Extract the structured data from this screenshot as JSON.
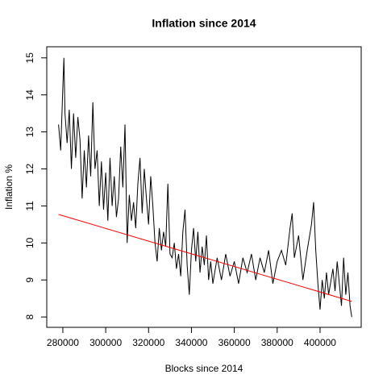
{
  "chart_data": {
    "type": "line",
    "title": "Inflation since 2014",
    "x_label": "Blocks since 2014",
    "y_label": "Inflation %",
    "xlim": [
      272500,
      419200
    ],
    "ylim": [
      7.72,
      15.3
    ],
    "xticks": [
      280000,
      300000,
      320000,
      340000,
      360000,
      380000,
      400000
    ],
    "yticks": [
      8,
      9,
      10,
      11,
      12,
      13,
      14,
      15
    ],
    "series": [
      {
        "color": "#000000",
        "x": [
          278000,
          279000,
          280000,
          280500,
          281000,
          282000,
          283000,
          284000,
          285000,
          286000,
          287000,
          288000,
          289000,
          290000,
          291000,
          292000,
          293000,
          294000,
          295000,
          296000,
          297000,
          298000,
          299000,
          300000,
          301000,
          302000,
          303000,
          304000,
          305000,
          306000,
          307000,
          308000,
          309000,
          310000,
          311000,
          312000,
          313000,
          314000,
          315000,
          316000,
          317000,
          318000,
          319000,
          320000,
          321000,
          322000,
          323000,
          324000,
          325000,
          326000,
          327000,
          328000,
          329000,
          330000,
          331000,
          332000,
          333000,
          334000,
          335000,
          336000,
          337000,
          338000,
          339000,
          340000,
          341000,
          342000,
          343000,
          344000,
          345000,
          346000,
          347000,
          348000,
          349000,
          350000,
          352000,
          354000,
          356000,
          358000,
          360000,
          362000,
          364000,
          366000,
          368000,
          370000,
          372000,
          374000,
          376000,
          378000,
          380000,
          382000,
          384000,
          386000,
          387000,
          388000,
          390000,
          392000,
          394000,
          396000,
          397000,
          398000,
          399000,
          400000,
          401000,
          402000,
          403000,
          404000,
          406000,
          407000,
          408000,
          409000,
          410000,
          411000,
          412000,
          413000,
          414000,
          414800
        ],
        "values": [
          13.2,
          12.5,
          14.2,
          15.0,
          13.5,
          12.7,
          13.6,
          12.0,
          13.5,
          12.3,
          13.4,
          12.8,
          11.2,
          12.5,
          11.5,
          12.9,
          11.8,
          13.8,
          12.0,
          12.5,
          11.0,
          12.2,
          10.9,
          11.9,
          10.6,
          12.3,
          11.0,
          11.8,
          10.7,
          11.2,
          12.6,
          11.5,
          13.2,
          10.0,
          11.3,
          10.6,
          11.1,
          10.4,
          11.6,
          12.3,
          10.8,
          12.0,
          11.2,
          10.5,
          11.8,
          11.0,
          10.0,
          9.5,
          10.4,
          9.8,
          10.3,
          9.9,
          11.6,
          9.7,
          9.6,
          10.0,
          9.3,
          9.7,
          9.1,
          10.3,
          10.9,
          9.4,
          8.6,
          9.8,
          10.4,
          9.5,
          10.3,
          9.2,
          9.9,
          9.4,
          10.2,
          9.0,
          9.5,
          8.9,
          9.6,
          9.0,
          9.7,
          9.1,
          9.5,
          8.9,
          9.6,
          9.2,
          9.7,
          9.0,
          9.6,
          9.2,
          9.8,
          8.9,
          9.5,
          9.8,
          9.4,
          10.4,
          10.8,
          9.6,
          10.2,
          9.0,
          9.8,
          10.5,
          11.1,
          9.8,
          8.9,
          8.2,
          9.0,
          8.5,
          9.2,
          8.6,
          9.3,
          8.7,
          9.5,
          8.9,
          8.3,
          9.6,
          8.6,
          9.2,
          8.3,
          8.0
        ]
      },
      {
        "color": "#ff0000",
        "x": [
          278000,
          414800
        ],
        "values": [
          10.77,
          8.42
        ]
      }
    ]
  }
}
